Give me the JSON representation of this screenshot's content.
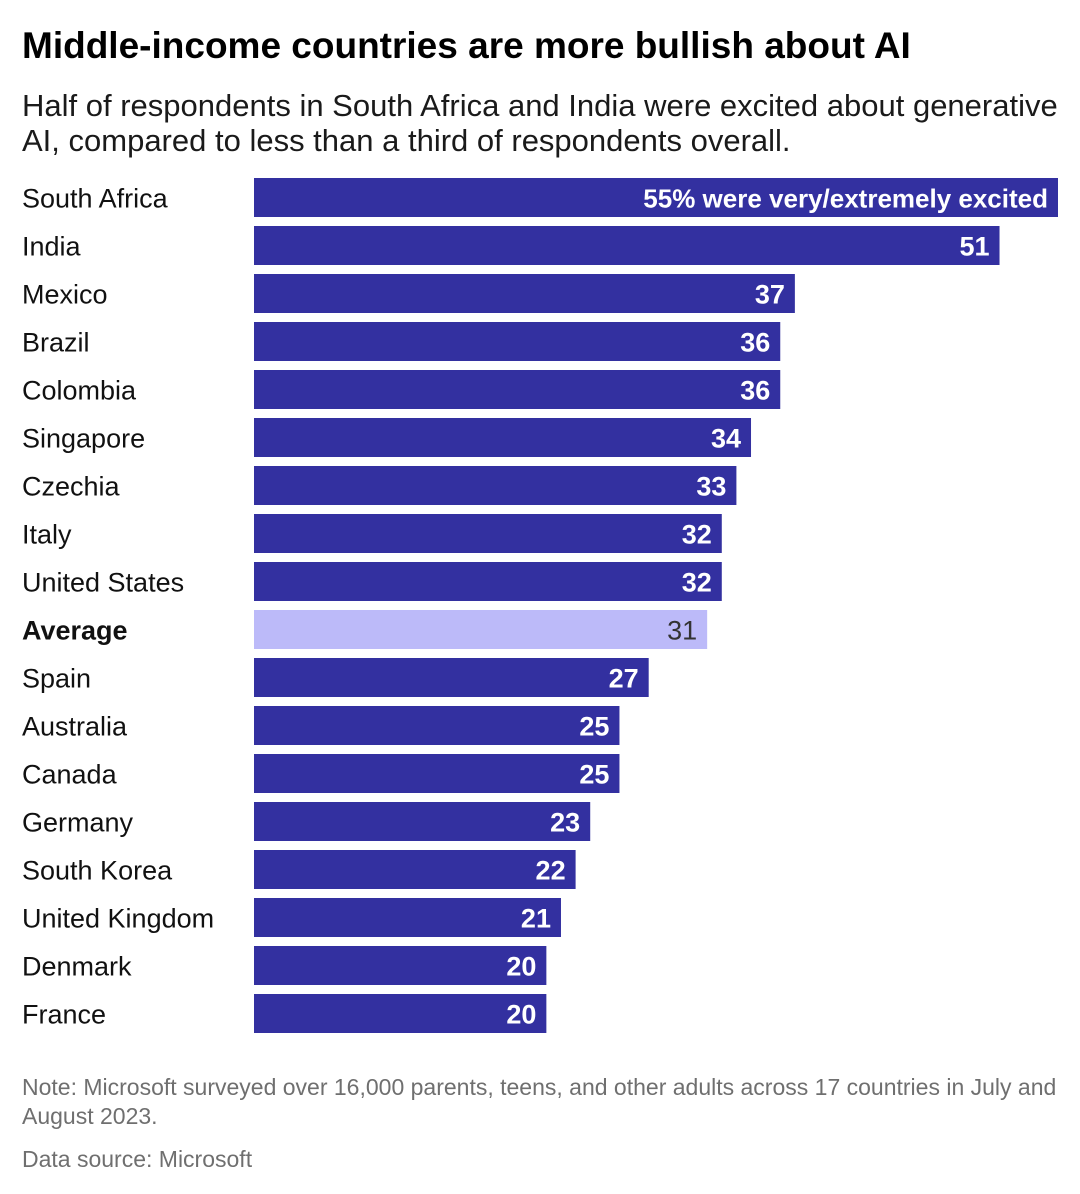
{
  "title": "Middle-income countries are more bullish about AI",
  "subtitle": "Half of respondents in South Africa and India were excited about generative AI, compared to less than a third of respondents overall.",
  "note": "Note: Microsoft surveyed over 16,000 parents, teens, and other adults across 17 countries in July and August 2023.",
  "source": "Data source: Microsoft",
  "colors": {
    "bar": "#3330a0",
    "highlight_bar": "#bcbaf9",
    "bar_label": "#ffffff",
    "highlight_label": "#333333"
  },
  "chart_data": {
    "type": "bar",
    "orientation": "horizontal",
    "categories": [
      "South Africa",
      "India",
      "Mexico",
      "Brazil",
      "Colombia",
      "Singapore",
      "Czechia",
      "Italy",
      "United States",
      "Average",
      "Spain",
      "Australia",
      "Canada",
      "Germany",
      "South Korea",
      "United Kingdom",
      "Denmark",
      "France"
    ],
    "values": [
      55,
      51,
      37,
      36,
      36,
      34,
      33,
      32,
      32,
      31,
      27,
      25,
      25,
      23,
      22,
      21,
      20,
      20
    ],
    "data_labels": [
      "55% were very/extremely excited",
      "51",
      "37",
      "36",
      "36",
      "34",
      "33",
      "32",
      "32",
      "31",
      "27",
      "25",
      "25",
      "23",
      "22",
      "21",
      "20",
      "20"
    ],
    "highlight": [
      "Average"
    ],
    "xlim": [
      0,
      55
    ],
    "grid": false,
    "legend": "none"
  }
}
